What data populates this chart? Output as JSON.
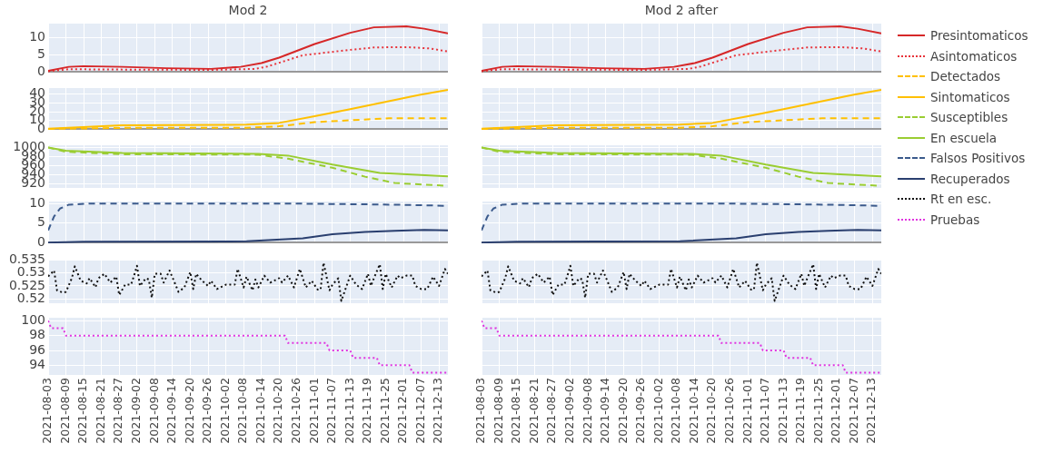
{
  "chart_data": [
    {
      "type": "line",
      "title": "Mod 2",
      "grid": true,
      "legend": "right",
      "tick_labels": "y",
      "xlim": [
        "2021-08-03",
        "2021-12-16"
      ],
      "ylim": [
        -0.2,
        14.2
      ],
      "yticks": [
        0,
        5,
        10
      ],
      "xticks": [
        "2021-08-03",
        "2021-08-09",
        "2021-08-15",
        "2021-08-21",
        "2021-08-27",
        "2021-09-02",
        "2021-09-08",
        "2021-09-14",
        "2021-09-20",
        "2021-09-26",
        "2021-10-02",
        "2021-10-08",
        "2021-10-14",
        "2021-10-20",
        "2021-10-26",
        "2021-11-01",
        "2021-11-07",
        "2021-11-13",
        "2021-11-19",
        "2021-11-25",
        "2021-12-01",
        "2021-12-07",
        "2021-12-13"
      ],
      "series": [
        {
          "name": "Presintomaticos",
          "color": "#d62728",
          "line_style": "solid",
          "x": [
            "2021-08-03",
            "2021-08-10",
            "2021-08-15",
            "2021-08-28",
            "2021-09-12",
            "2021-09-27",
            "2021-10-07",
            "2021-10-14",
            "2021-10-20",
            "2021-11-01",
            "2021-11-13",
            "2021-11-21",
            "2021-12-02",
            "2021-12-08",
            "2021-12-16"
          ],
          "values": [
            0.3,
            1.5,
            1.7,
            1.5,
            1.1,
            0.9,
            1.5,
            2.6,
            4.2,
            8.2,
            11.5,
            13.1,
            13.4,
            12.7,
            11.3
          ]
        },
        {
          "name": "Asintomaticos",
          "color": "#e8333a",
          "line_style": "dotted",
          "x": [
            "2021-08-03",
            "2021-08-10",
            "2021-08-28",
            "2021-09-27",
            "2021-10-12",
            "2021-10-16",
            "2021-10-28",
            "2021-11-13",
            "2021-11-21",
            "2021-12-02",
            "2021-12-10",
            "2021-12-16"
          ],
          "values": [
            0.2,
            0.8,
            0.7,
            0.6,
            0.9,
            1.6,
            4.9,
            6.5,
            7.2,
            7.3,
            6.9,
            6.0
          ]
        }
      ]
    },
    {
      "type": "line",
      "title": "Mod 2 after",
      "grid": true,
      "tick_labels": false,
      "xlim": [
        "2021-08-03",
        "2021-12-16"
      ],
      "ylim": [
        -0.2,
        14.2
      ],
      "yticks": [
        0,
        5,
        10
      ],
      "xticks": [
        "2021-08-03",
        "2021-08-09",
        "2021-08-15",
        "2021-08-21",
        "2021-08-27",
        "2021-09-02",
        "2021-09-08",
        "2021-09-14",
        "2021-09-20",
        "2021-09-26",
        "2021-10-02",
        "2021-10-08",
        "2021-10-14",
        "2021-10-20",
        "2021-10-26",
        "2021-11-01",
        "2021-11-07",
        "2021-11-13",
        "2021-11-19",
        "2021-11-25",
        "2021-12-01",
        "2021-12-07",
        "2021-12-13"
      ],
      "series": [
        {
          "color": "#d62728",
          "line_style": "solid",
          "x": [
            "2021-08-03",
            "2021-08-10",
            "2021-08-15",
            "2021-08-28",
            "2021-09-12",
            "2021-09-27",
            "2021-10-07",
            "2021-10-14",
            "2021-10-20",
            "2021-11-01",
            "2021-11-13",
            "2021-11-21",
            "2021-12-02",
            "2021-12-08",
            "2021-12-16"
          ],
          "values": [
            0.3,
            1.5,
            1.7,
            1.5,
            1.1,
            0.9,
            1.5,
            2.6,
            4.2,
            8.2,
            11.5,
            13.1,
            13.4,
            12.7,
            11.3
          ]
        },
        {
          "color": "#e8333a",
          "line_style": "dotted",
          "x": [
            "2021-08-03",
            "2021-08-10",
            "2021-08-28",
            "2021-09-27",
            "2021-10-12",
            "2021-10-16",
            "2021-10-28",
            "2021-11-13",
            "2021-11-21",
            "2021-12-02",
            "2021-12-10",
            "2021-12-16"
          ],
          "values": [
            0.2,
            0.8,
            0.7,
            0.6,
            0.9,
            1.6,
            4.9,
            6.5,
            7.2,
            7.3,
            6.9,
            6.0
          ]
        }
      ]
    },
    {
      "type": "line",
      "grid": true,
      "legend": "right",
      "tick_labels": "y",
      "xlim": [
        "2021-08-03",
        "2021-12-16"
      ],
      "ylim": [
        -0.7,
        47
      ],
      "yticks": [
        0,
        10,
        20,
        30,
        40
      ],
      "xticks": [
        "2021-08-03",
        "2021-08-09",
        "2021-08-15",
        "2021-08-21",
        "2021-08-27",
        "2021-09-02",
        "2021-09-08",
        "2021-09-14",
        "2021-09-20",
        "2021-09-26",
        "2021-10-02",
        "2021-10-08",
        "2021-10-14",
        "2021-10-20",
        "2021-10-26",
        "2021-11-01",
        "2021-11-07",
        "2021-11-13",
        "2021-11-19",
        "2021-11-25",
        "2021-12-01",
        "2021-12-07",
        "2021-12-13"
      ],
      "series": [
        {
          "name": "Detectados",
          "color": "#ffc000",
          "line_style": "dashed",
          "x": [
            "2021-08-03",
            "2021-08-28",
            "2021-10-09",
            "2021-10-20",
            "2021-11-01",
            "2021-11-13",
            "2021-11-26",
            "2021-12-16"
          ],
          "values": [
            0.3,
            1.5,
            1.7,
            3.4,
            8,
            10.3,
            12.4,
            12.4
          ]
        },
        {
          "name": "Sintomaticos",
          "color": "#ffc000",
          "line_style": "solid",
          "x": [
            "2021-08-03",
            "2021-08-28",
            "2021-10-09",
            "2021-10-20",
            "2021-11-01",
            "2021-11-13",
            "2021-11-26",
            "2021-12-06",
            "2021-12-16"
          ],
          "values": [
            0.5,
            4.5,
            5.2,
            7.2,
            14.8,
            22.8,
            32,
            39,
            45
          ]
        }
      ]
    },
    {
      "type": "line",
      "grid": true,
      "tick_labels": false,
      "xlim": [
        "2021-08-03",
        "2021-12-16"
      ],
      "ylim": [
        -0.7,
        47
      ],
      "yticks": [
        0,
        10,
        20,
        30,
        40
      ],
      "xticks": [
        "2021-08-03",
        "2021-08-09",
        "2021-08-15",
        "2021-08-21",
        "2021-08-27",
        "2021-09-02",
        "2021-09-08",
        "2021-09-14",
        "2021-09-20",
        "2021-09-26",
        "2021-10-02",
        "2021-10-08",
        "2021-10-14",
        "2021-10-20",
        "2021-10-26",
        "2021-11-01",
        "2021-11-07",
        "2021-11-13",
        "2021-11-19",
        "2021-11-25",
        "2021-12-01",
        "2021-12-07",
        "2021-12-13"
      ],
      "series": [
        {
          "color": "#ffc000",
          "line_style": "dashed",
          "x": [
            "2021-08-03",
            "2021-08-28",
            "2021-10-09",
            "2021-10-20",
            "2021-11-01",
            "2021-11-13",
            "2021-11-26",
            "2021-12-16"
          ],
          "values": [
            0.3,
            1.5,
            1.7,
            3.4,
            8,
            10.3,
            12.4,
            12.4
          ]
        },
        {
          "color": "#ffc000",
          "line_style": "solid",
          "x": [
            "2021-08-03",
            "2021-08-28",
            "2021-10-09",
            "2021-10-20",
            "2021-11-01",
            "2021-11-13",
            "2021-11-26",
            "2021-12-06",
            "2021-12-16"
          ],
          "values": [
            0.5,
            4.5,
            5.2,
            7.2,
            14.8,
            22.8,
            32,
            39,
            45
          ]
        }
      ]
    },
    {
      "type": "line",
      "grid": true,
      "legend": "right",
      "tick_labels": "y",
      "xlim": [
        "2021-08-03",
        "2021-12-16"
      ],
      "ylim": [
        910,
        1005
      ],
      "yticks": [
        920,
        940,
        960,
        980,
        1000
      ],
      "xticks": [
        "2021-08-03",
        "2021-08-09",
        "2021-08-15",
        "2021-08-21",
        "2021-08-27",
        "2021-09-02",
        "2021-09-08",
        "2021-09-14",
        "2021-09-20",
        "2021-09-26",
        "2021-10-02",
        "2021-10-08",
        "2021-10-14",
        "2021-10-20",
        "2021-10-26",
        "2021-11-01",
        "2021-11-07",
        "2021-11-13",
        "2021-11-19",
        "2021-11-25",
        "2021-12-01",
        "2021-12-07",
        "2021-12-13"
      ],
      "series": [
        {
          "name": "Susceptibles",
          "color": "#9acd32",
          "line_style": "dashed",
          "x": [
            "2021-08-03",
            "2021-08-09",
            "2021-08-28",
            "2021-10-13",
            "2021-10-23",
            "2021-11-07",
            "2021-11-18",
            "2021-11-28",
            "2021-12-16"
          ],
          "values": [
            1000,
            990.5,
            985,
            984,
            975,
            955,
            935,
            921,
            914.6
          ]
        },
        {
          "name": "En escuela",
          "color": "#9acd32",
          "line_style": "solid",
          "x": [
            "2021-08-03",
            "2021-08-09",
            "2021-08-28",
            "2021-10-13",
            "2021-10-23",
            "2021-11-07",
            "2021-11-23",
            "2021-12-16"
          ],
          "values": [
            1000,
            993,
            988,
            986,
            982,
            962,
            943.5,
            936
          ]
        }
      ]
    },
    {
      "type": "line",
      "grid": true,
      "tick_labels": false,
      "xlim": [
        "2021-08-03",
        "2021-12-16"
      ],
      "ylim": [
        910,
        1005
      ],
      "yticks": [
        920,
        940,
        960,
        980,
        1000
      ],
      "xticks": [
        "2021-08-03",
        "2021-08-09",
        "2021-08-15",
        "2021-08-21",
        "2021-08-27",
        "2021-09-02",
        "2021-09-08",
        "2021-09-14",
        "2021-09-20",
        "2021-09-26",
        "2021-10-02",
        "2021-10-08",
        "2021-10-14",
        "2021-10-20",
        "2021-10-26",
        "2021-11-01",
        "2021-11-07",
        "2021-11-13",
        "2021-11-19",
        "2021-11-25",
        "2021-12-01",
        "2021-12-07",
        "2021-12-13"
      ],
      "series": [
        {
          "color": "#9acd32",
          "line_style": "dashed",
          "x": [
            "2021-08-03",
            "2021-08-09",
            "2021-08-28",
            "2021-10-13",
            "2021-10-23",
            "2021-11-07",
            "2021-11-18",
            "2021-11-28",
            "2021-12-16"
          ],
          "values": [
            1000,
            990.5,
            985,
            984,
            975,
            955,
            935,
            921,
            914.6
          ]
        },
        {
          "color": "#9acd32",
          "line_style": "solid",
          "x": [
            "2021-08-03",
            "2021-08-09",
            "2021-08-28",
            "2021-10-13",
            "2021-10-23",
            "2021-11-07",
            "2021-11-23",
            "2021-12-16"
          ],
          "values": [
            1000,
            993,
            988,
            986,
            982,
            962,
            943.5,
            936
          ]
        }
      ]
    },
    {
      "type": "line",
      "grid": true,
      "legend": "right",
      "tick_labels": "y",
      "xlim": [
        "2021-08-03",
        "2021-12-16"
      ],
      "ylim": [
        -0.2,
        10.5
      ],
      "yticks": [
        0,
        5,
        10
      ],
      "xticks": [
        "2021-08-03",
        "2021-08-09",
        "2021-08-15",
        "2021-08-21",
        "2021-08-27",
        "2021-09-02",
        "2021-09-08",
        "2021-09-14",
        "2021-09-20",
        "2021-09-26",
        "2021-10-02",
        "2021-10-08",
        "2021-10-14",
        "2021-10-20",
        "2021-10-26",
        "2021-11-01",
        "2021-11-07",
        "2021-11-13",
        "2021-11-19",
        "2021-11-25",
        "2021-12-01",
        "2021-12-07",
        "2021-12-13"
      ],
      "series": [
        {
          "name": "Falsos Positivos",
          "color": "#3b5a8c",
          "line_style": "dashed",
          "x": [
            "2021-08-03",
            "2021-08-05",
            "2021-08-07",
            "2021-08-10",
            "2021-08-17",
            "2021-10-22",
            "2021-11-28",
            "2021-12-16"
          ],
          "values": [
            3.1,
            6.7,
            8.7,
            9.7,
            10,
            10,
            9.7,
            9.4
          ]
        },
        {
          "name": "Recuperados",
          "color": "#2a3f6f",
          "line_style": "solid",
          "x": [
            "2021-08-03",
            "2021-08-15",
            "2021-10-09",
            "2021-10-28",
            "2021-11-07",
            "2021-11-18",
            "2021-11-28",
            "2021-12-08",
            "2021-12-16"
          ],
          "values": [
            0,
            0.2,
            0.3,
            1.1,
            2.1,
            2.7,
            3.0,
            3.25,
            3.1
          ]
        }
      ]
    },
    {
      "type": "line",
      "grid": true,
      "tick_labels": false,
      "xlim": [
        "2021-08-03",
        "2021-12-16"
      ],
      "ylim": [
        -0.2,
        10.5
      ],
      "yticks": [
        0,
        5,
        10
      ],
      "xticks": [
        "2021-08-03",
        "2021-08-09",
        "2021-08-15",
        "2021-08-21",
        "2021-08-27",
        "2021-09-02",
        "2021-09-08",
        "2021-09-14",
        "2021-09-20",
        "2021-09-26",
        "2021-10-02",
        "2021-10-08",
        "2021-10-14",
        "2021-10-20",
        "2021-10-26",
        "2021-11-01",
        "2021-11-07",
        "2021-11-13",
        "2021-11-19",
        "2021-11-25",
        "2021-12-01",
        "2021-12-07",
        "2021-12-13"
      ],
      "series": [
        {
          "color": "#3b5a8c",
          "line_style": "dashed",
          "x": [
            "2021-08-03",
            "2021-08-05",
            "2021-08-07",
            "2021-08-10",
            "2021-08-17",
            "2021-10-22",
            "2021-11-28",
            "2021-12-16"
          ],
          "values": [
            3.1,
            6.7,
            8.7,
            9.7,
            10,
            10,
            9.7,
            9.4
          ]
        },
        {
          "color": "#2a3f6f",
          "line_style": "solid",
          "x": [
            "2021-08-03",
            "2021-08-15",
            "2021-10-09",
            "2021-10-28",
            "2021-11-07",
            "2021-11-18",
            "2021-11-28",
            "2021-12-08",
            "2021-12-16"
          ],
          "values": [
            0,
            0.2,
            0.3,
            1.1,
            2.1,
            2.7,
            3.0,
            3.25,
            3.1
          ]
        }
      ]
    },
    {
      "type": "line",
      "grid": true,
      "legend": "right",
      "tick_labels": "y",
      "xlim": [
        "2021-08-03",
        "2021-12-16"
      ],
      "ylim": [
        0.5183,
        0.5352
      ],
      "yticks": [
        0.52,
        0.525,
        0.53,
        0.535
      ],
      "xticks": [
        "2021-08-03",
        "2021-08-09",
        "2021-08-15",
        "2021-08-21",
        "2021-08-27",
        "2021-09-02",
        "2021-09-08",
        "2021-09-14",
        "2021-09-20",
        "2021-09-26",
        "2021-10-02",
        "2021-10-08",
        "2021-10-14",
        "2021-10-20",
        "2021-10-26",
        "2021-11-01",
        "2021-11-07",
        "2021-11-13",
        "2021-11-19",
        "2021-11-25",
        "2021-12-01",
        "2021-12-07",
        "2021-12-13"
      ],
      "series": [
        {
          "name": "Rt en esc.",
          "color": "#111111",
          "line_style": "dotted",
          "x": [
            "2021-08-03",
            "2021-08-05",
            "2021-08-06",
            "2021-08-08",
            "2021-08-09",
            "2021-08-11",
            "2021-08-12",
            "2021-08-14",
            "2021-08-16",
            "2021-08-17",
            "2021-08-19",
            "2021-08-20",
            "2021-08-22",
            "2021-08-24",
            "2021-08-26",
            "2021-08-27",
            "2021-08-29",
            "2021-08-31",
            "2021-09-01",
            "2021-09-02",
            "2021-09-03",
            "2021-09-05",
            "2021-09-06",
            "2021-09-07",
            "2021-09-08",
            "2021-09-10",
            "2021-09-11",
            "2021-09-13",
            "2021-09-15",
            "2021-09-16",
            "2021-09-18",
            "2021-09-20",
            "2021-09-21",
            "2021-09-22",
            "2021-09-24",
            "2021-09-26",
            "2021-09-27",
            "2021-09-29",
            "2021-10-02",
            "2021-10-05",
            "2021-10-06",
            "2021-10-08",
            "2021-10-09",
            "2021-10-11",
            "2021-10-12",
            "2021-10-13",
            "2021-10-15",
            "2021-10-17",
            "2021-10-20",
            "2021-10-21",
            "2021-10-23",
            "2021-10-25",
            "2021-10-27",
            "2021-10-29",
            "2021-10-31",
            "2021-11-02",
            "2021-11-03",
            "2021-11-04",
            "2021-11-06",
            "2021-11-07",
            "2021-11-09",
            "2021-11-10",
            "2021-11-13",
            "2021-11-15",
            "2021-11-17",
            "2021-11-19",
            "2021-11-20",
            "2021-11-21",
            "2021-11-23",
            "2021-11-24",
            "2021-11-25",
            "2021-11-27",
            "2021-11-29",
            "2021-11-30",
            "2021-12-02",
            "2021-12-04",
            "2021-12-05",
            "2021-12-07",
            "2021-12-09",
            "2021-12-11",
            "2021-12-13",
            "2021-12-15",
            "2021-12-16"
          ],
          "values": [
            0.5287,
            0.531,
            0.5233,
            0.5224,
            0.5227,
            0.528,
            0.5326,
            0.527,
            0.526,
            0.528,
            0.5245,
            0.528,
            0.5297,
            0.5263,
            0.5286,
            0.5215,
            0.5255,
            0.5255,
            0.529,
            0.5328,
            0.525,
            0.528,
            0.5275,
            0.5204,
            0.5297,
            0.5297,
            0.5263,
            0.531,
            0.5255,
            0.5227,
            0.5244,
            0.5304,
            0.5238,
            0.5297,
            0.527,
            0.525,
            0.527,
            0.5238,
            0.5255,
            0.5255,
            0.5316,
            0.5244,
            0.5286,
            0.5233,
            0.5275,
            0.5244,
            0.529,
            0.5263,
            0.528,
            0.5263,
            0.529,
            0.5244,
            0.5316,
            0.5244,
            0.527,
            0.5236,
            0.5236,
            0.534,
            0.5233,
            0.5255,
            0.528,
            0.5192,
            0.529,
            0.5255,
            0.5238,
            0.5297,
            0.525,
            0.528,
            0.5334,
            0.5238,
            0.5297,
            0.5244,
            0.529,
            0.528,
            0.529,
            0.529,
            0.525,
            0.5238,
            0.5238,
            0.5286,
            0.525,
            0.5316,
            0.5297
          ]
        }
      ]
    },
    {
      "type": "line",
      "grid": true,
      "tick_labels": false,
      "xlim": [
        "2021-08-03",
        "2021-12-16"
      ],
      "ylim": [
        0.5183,
        0.5352
      ],
      "yticks": [
        0.52,
        0.525,
        0.53,
        0.535
      ],
      "xticks": [
        "2021-08-03",
        "2021-08-09",
        "2021-08-15",
        "2021-08-21",
        "2021-08-27",
        "2021-09-02",
        "2021-09-08",
        "2021-09-14",
        "2021-09-20",
        "2021-09-26",
        "2021-10-02",
        "2021-10-08",
        "2021-10-14",
        "2021-10-20",
        "2021-10-26",
        "2021-11-01",
        "2021-11-07",
        "2021-11-13",
        "2021-11-19",
        "2021-11-25",
        "2021-12-01",
        "2021-12-07",
        "2021-12-13"
      ],
      "series": [
        {
          "color": "#111111",
          "line_style": "dotted",
          "x": [
            "2021-08-03",
            "2021-08-05",
            "2021-08-06",
            "2021-08-08",
            "2021-08-09",
            "2021-08-11",
            "2021-08-12",
            "2021-08-14",
            "2021-08-16",
            "2021-08-17",
            "2021-08-19",
            "2021-08-20",
            "2021-08-22",
            "2021-08-24",
            "2021-08-26",
            "2021-08-27",
            "2021-08-29",
            "2021-08-31",
            "2021-09-01",
            "2021-09-02",
            "2021-09-03",
            "2021-09-05",
            "2021-09-06",
            "2021-09-07",
            "2021-09-08",
            "2021-09-10",
            "2021-09-11",
            "2021-09-13",
            "2021-09-15",
            "2021-09-16",
            "2021-09-18",
            "2021-09-20",
            "2021-09-21",
            "2021-09-22",
            "2021-09-24",
            "2021-09-26",
            "2021-09-27",
            "2021-09-29",
            "2021-10-02",
            "2021-10-05",
            "2021-10-06",
            "2021-10-08",
            "2021-10-09",
            "2021-10-11",
            "2021-10-12",
            "2021-10-13",
            "2021-10-15",
            "2021-10-17",
            "2021-10-20",
            "2021-10-21",
            "2021-10-23",
            "2021-10-25",
            "2021-10-27",
            "2021-10-29",
            "2021-10-31",
            "2021-11-02",
            "2021-11-03",
            "2021-11-04",
            "2021-11-06",
            "2021-11-07",
            "2021-11-09",
            "2021-11-10",
            "2021-11-13",
            "2021-11-15",
            "2021-11-17",
            "2021-11-19",
            "2021-11-20",
            "2021-11-21",
            "2021-11-23",
            "2021-11-24",
            "2021-11-25",
            "2021-11-27",
            "2021-11-29",
            "2021-11-30",
            "2021-12-02",
            "2021-12-04",
            "2021-12-05",
            "2021-12-07",
            "2021-12-09",
            "2021-12-11",
            "2021-12-13",
            "2021-12-15",
            "2021-12-16"
          ],
          "values": [
            0.5287,
            0.531,
            0.5233,
            0.5224,
            0.5227,
            0.528,
            0.5326,
            0.527,
            0.526,
            0.528,
            0.5245,
            0.528,
            0.5297,
            0.5263,
            0.5286,
            0.5215,
            0.5255,
            0.5255,
            0.529,
            0.5328,
            0.525,
            0.528,
            0.5275,
            0.5204,
            0.5297,
            0.5297,
            0.5263,
            0.531,
            0.5255,
            0.5227,
            0.5244,
            0.5304,
            0.5238,
            0.5297,
            0.527,
            0.525,
            0.527,
            0.5238,
            0.5255,
            0.5255,
            0.5316,
            0.5244,
            0.5286,
            0.5233,
            0.5275,
            0.5244,
            0.529,
            0.5263,
            0.528,
            0.5263,
            0.529,
            0.5244,
            0.5316,
            0.5244,
            0.527,
            0.5236,
            0.5236,
            0.534,
            0.5233,
            0.5255,
            0.528,
            0.5192,
            0.529,
            0.5255,
            0.5238,
            0.5297,
            0.525,
            0.528,
            0.5334,
            0.5238,
            0.5297,
            0.5244,
            0.529,
            0.528,
            0.529,
            0.529,
            0.525,
            0.5238,
            0.5238,
            0.5286,
            0.525,
            0.5316,
            0.5297
          ]
        }
      ]
    },
    {
      "type": "line",
      "grid": true,
      "legend": "right",
      "xlim": [
        "2021-08-03",
        "2021-12-16"
      ],
      "ylim": [
        92.7,
        100.4
      ],
      "yticks": [
        94,
        96,
        98,
        100
      ],
      "xticks": [
        "2021-08-03",
        "2021-08-09",
        "2021-08-15",
        "2021-08-21",
        "2021-08-27",
        "2021-09-02",
        "2021-09-08",
        "2021-09-14",
        "2021-09-20",
        "2021-09-26",
        "2021-10-02",
        "2021-10-08",
        "2021-10-14",
        "2021-10-20",
        "2021-10-26",
        "2021-11-01",
        "2021-11-07",
        "2021-11-13",
        "2021-11-19",
        "2021-11-25",
        "2021-12-01",
        "2021-12-07",
        "2021-12-13"
      ],
      "series": [
        {
          "name": "Pruebas",
          "color": "#e033e0",
          "line_style": "dotted",
          "x": [
            "2021-08-03",
            "2021-08-04",
            "2021-08-08",
            "2021-08-09",
            "2021-10-22",
            "2021-10-23",
            "2021-11-05",
            "2021-11-06",
            "2021-11-13",
            "2021-11-14",
            "2021-11-22",
            "2021-11-23",
            "2021-12-03",
            "2021-12-04",
            "2021-12-16"
          ],
          "values": [
            100,
            99,
            99,
            98,
            98,
            97,
            97,
            96,
            96,
            95,
            95,
            94,
            94,
            93,
            93
          ]
        }
      ]
    },
    {
      "type": "line",
      "grid": true,
      "tick_labels": "x",
      "xlim": [
        "2021-08-03",
        "2021-12-16"
      ],
      "ylim": [
        92.7,
        100.4
      ],
      "yticks": [
        94,
        96,
        98,
        100
      ],
      "xticks": [
        "2021-08-03",
        "2021-08-09",
        "2021-08-15",
        "2021-08-21",
        "2021-08-27",
        "2021-09-02",
        "2021-09-08",
        "2021-09-14",
        "2021-09-20",
        "2021-09-26",
        "2021-10-02",
        "2021-10-08",
        "2021-10-14",
        "2021-10-20",
        "2021-10-26",
        "2021-11-01",
        "2021-11-07",
        "2021-11-13",
        "2021-11-19",
        "2021-11-25",
        "2021-12-01",
        "2021-12-07",
        "2021-12-13"
      ],
      "series": [
        {
          "color": "#e033e0",
          "line_style": "dotted",
          "x": [
            "2021-08-03",
            "2021-08-04",
            "2021-08-08",
            "2021-08-09",
            "2021-10-22",
            "2021-10-23",
            "2021-11-05",
            "2021-11-06",
            "2021-11-13",
            "2021-11-14",
            "2021-11-22",
            "2021-11-23",
            "2021-12-03",
            "2021-12-04",
            "2021-12-16"
          ],
          "values": [
            100,
            99,
            99,
            98,
            98,
            97,
            97,
            96,
            96,
            95,
            95,
            94,
            94,
            93,
            93
          ]
        }
      ]
    }
  ]
}
